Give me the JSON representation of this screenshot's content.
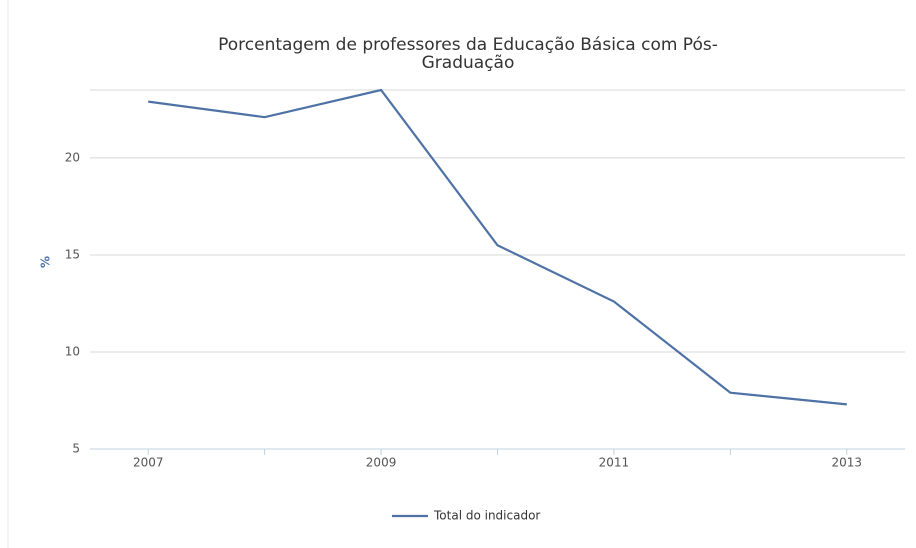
{
  "chart_data": {
    "type": "line",
    "title": "Porcentagem de professores da Educação Básica com Pós-Graduação",
    "y_label": "%",
    "x": [
      2007,
      2008,
      2009,
      2010,
      2011,
      2012,
      2013
    ],
    "xlim": [
      2006.5,
      2013.5
    ],
    "xticks": [
      2007,
      2009,
      2011,
      2013
    ],
    "ylim": [
      5,
      23.5
    ],
    "yticks": [
      5,
      10,
      15,
      20
    ],
    "grid": true,
    "legend": "bottom",
    "series": [
      {
        "name": "Total do indicador",
        "color": "#4e72a5",
        "values": [
          22.9,
          22.1,
          23.5,
          15.5,
          12.6,
          7.9,
          7.3
        ]
      }
    ]
  }
}
